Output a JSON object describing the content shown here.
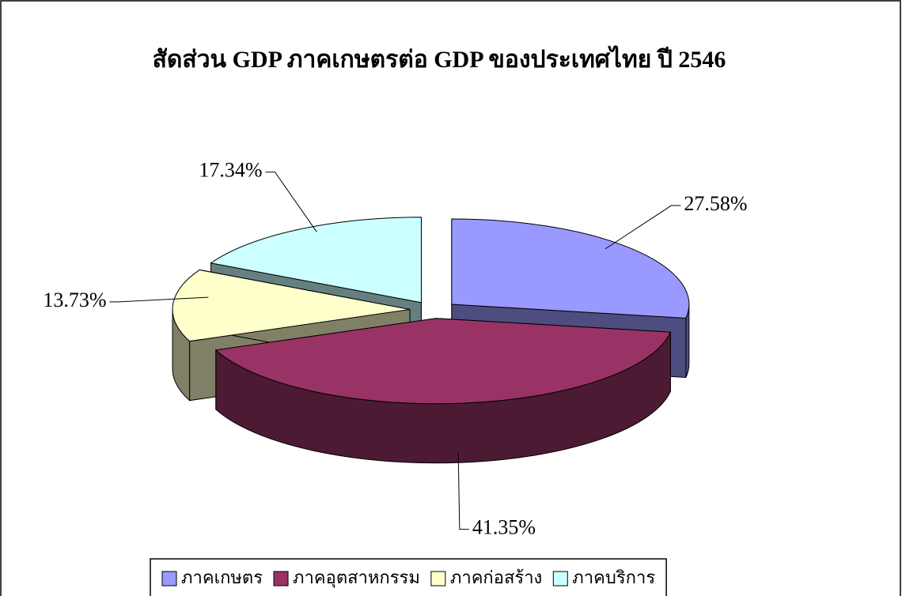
{
  "chart_data": {
    "type": "pie",
    "title": "สัดส่วน GDP ภาคเกษตรต่อ GDP ของประเทศไทย ปี 2546",
    "categories": [
      "ภาคเกษตร",
      "ภาคอุตสาหกรรม",
      "ภาคก่อสร้าง",
      "ภาคบริการ"
    ],
    "values": [
      27.58,
      41.35,
      13.73,
      17.34
    ],
    "value_labels": [
      "27.58%",
      "41.35%",
      "13.73%",
      "17.34%"
    ],
    "colors": [
      "#9999ff",
      "#993366",
      "#ffffcc",
      "#ccffff"
    ],
    "legend": "bottom"
  }
}
